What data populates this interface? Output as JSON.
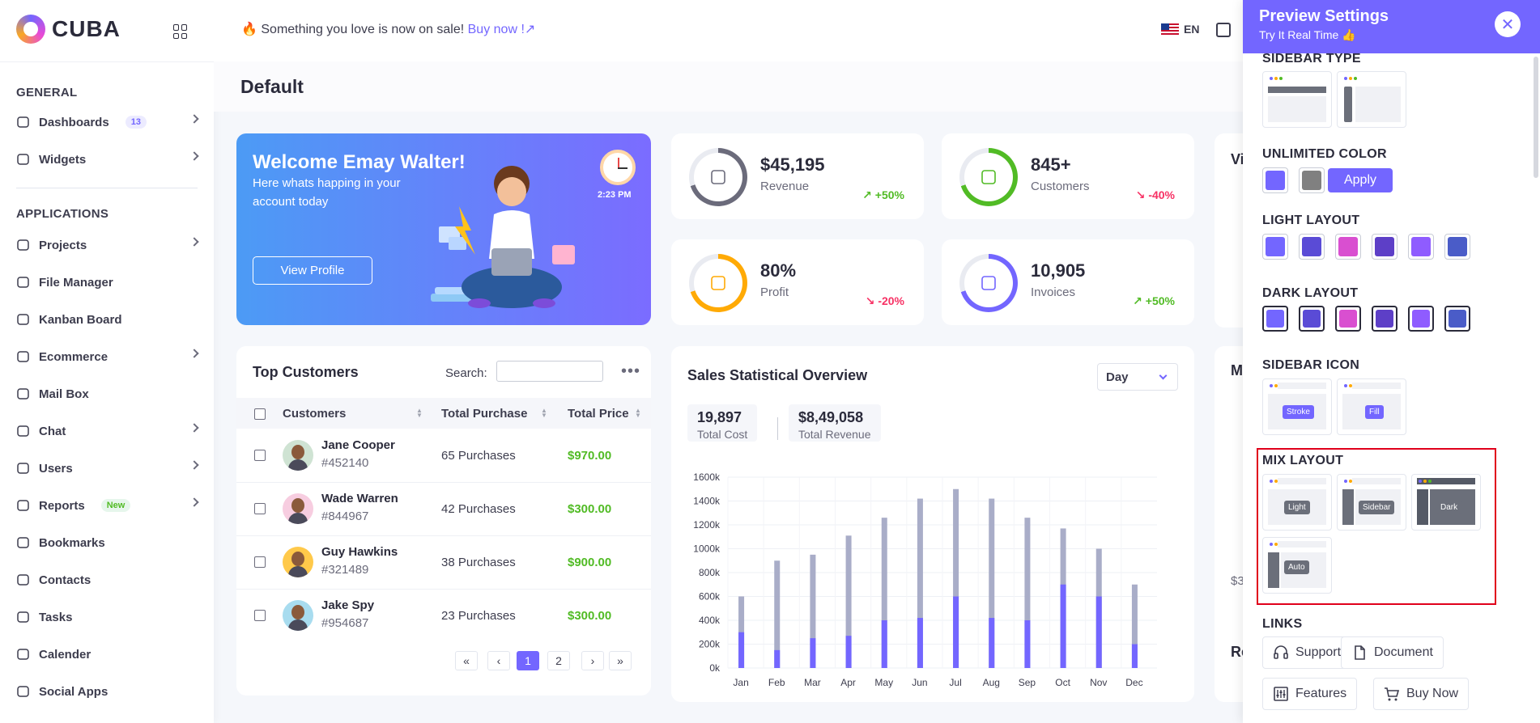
{
  "logo": {
    "text": "CUBA"
  },
  "sidebar": {
    "sections": [
      {
        "label": "GENERAL",
        "top": 106
      },
      {
        "label": "APPLICATIONS",
        "top": 256
      }
    ],
    "items": [
      {
        "label": "Dashboards",
        "badge": "13"
      },
      {
        "label": "Widgets"
      },
      {
        "label": "Projects"
      },
      {
        "label": "File Manager"
      },
      {
        "label": "Kanban Board"
      },
      {
        "label": "Ecommerce"
      },
      {
        "label": "Mail Box"
      },
      {
        "label": "Chat"
      },
      {
        "label": "Users"
      },
      {
        "label": "Reports",
        "badge": "New"
      },
      {
        "label": "Bookmarks"
      },
      {
        "label": "Contacts"
      },
      {
        "label": "Tasks"
      },
      {
        "label": "Calender"
      },
      {
        "label": "Social Apps"
      }
    ]
  },
  "header": {
    "promo_fire": "🔥",
    "promo_text": " Something you love is now on sale! ",
    "promo_link": "Buy now !↗",
    "language": "EN"
  },
  "page": {
    "title": "Default"
  },
  "welcome": {
    "title": "Welcome Emay Walter!",
    "text": "Here whats happing in your account today",
    "button": "View Profile",
    "time": "2:23 PM"
  },
  "stats": [
    {
      "value": "$45,195",
      "label": "Revenue",
      "trend": "+50%",
      "dir": "up",
      "color": "#6b6b7b"
    },
    {
      "value": "845+",
      "label": "Customers",
      "trend": "-40%",
      "dir": "down",
      "color": "#51bb25"
    },
    {
      "value": "80%",
      "label": "Profit",
      "trend": "-20%",
      "dir": "down",
      "color": "#ffaa05"
    },
    {
      "value": "10,905",
      "label": "Invoices",
      "trend": "+50%",
      "dir": "up",
      "color": "#7366ff"
    }
  ],
  "top_customers": {
    "title": "Top Customers",
    "search_label": "Search:",
    "columns": [
      "Customers",
      "Total Purchase",
      "Total Price"
    ],
    "rows": [
      {
        "name": "Jane Cooper",
        "id": "#452140",
        "purchases": "65 Purchases",
        "price": "$970.00",
        "avatar_bg": "#cfe3d3"
      },
      {
        "name": "Wade Warren",
        "id": "#844967",
        "purchases": "42 Purchases",
        "price": "$300.00",
        "avatar_bg": "#f7cde0"
      },
      {
        "name": "Guy Hawkins",
        "id": "#321489",
        "purchases": "38 Purchases",
        "price": "$900.00",
        "avatar_bg": "#ffc94a"
      },
      {
        "name": "Jake Spy",
        "id": "#954687",
        "purchases": "23 Purchases",
        "price": "$300.00",
        "avatar_bg": "#a8dcef"
      }
    ],
    "pagination": [
      "«",
      "‹",
      "1",
      "2",
      "›",
      "»"
    ]
  },
  "sales": {
    "title": "Sales Statistical Overview",
    "period": "Day",
    "total_cost": "19,897",
    "total_cost_label": "Total Cost",
    "total_revenue": "$8,49,058",
    "total_revenue_label": "Total Revenue"
  },
  "chart_data": {
    "type": "bar",
    "categories": [
      "Jan",
      "Feb",
      "Mar",
      "Apr",
      "May",
      "Jun",
      "Jul",
      "Aug",
      "Sep",
      "Oct",
      "Nov",
      "Dec"
    ],
    "series": [
      {
        "values": [
          300,
          150,
          250,
          270,
          400,
          420,
          600,
          420,
          400,
          700,
          600,
          200
        ],
        "color": "#7366ff"
      },
      {
        "values": [
          600,
          900,
          950,
          1110,
          1260,
          1420,
          1500,
          1420,
          1260,
          1170,
          1000,
          700
        ],
        "color": "#a9adc8"
      }
    ],
    "yticks": [
      "0k",
      "200k",
      "400k",
      "600k",
      "800k",
      "1000k",
      "1200k",
      "1400k",
      "1600k"
    ],
    "ylim": [
      0,
      1600
    ],
    "grid": true
  },
  "partials": {
    "vi": "Vi",
    "m": "M",
    "re": "Re",
    "s3": "$3"
  },
  "panel": {
    "title": "Preview Settings",
    "subtitle": "Try It Real Time 👍",
    "sidebar_type": "SIDEBAR TYPE",
    "unlimited_color": "UNLIMITED COLOR",
    "apply": "Apply",
    "light_layout": "LIGHT LAYOUT",
    "dark_layout": "DARK LAYOUT",
    "sidebar_icon": "SIDEBAR ICON",
    "stroke": "Stroke",
    "fill": "Fill",
    "mix_layout": "MIX LAYOUT",
    "mix": [
      "Light",
      "Sidebar",
      "Dark",
      "Auto"
    ],
    "links": "LINKS",
    "link_items": [
      "Support",
      "Document",
      "Features",
      "Buy Now"
    ],
    "unlimited_colors": [
      "#7366ff",
      "#808080"
    ],
    "layout_colors": [
      "#7366ff",
      "#5a4bd6",
      "#d94fd0",
      "#5d3fc7",
      "#8f5cff",
      "#4a5cc8"
    ]
  }
}
